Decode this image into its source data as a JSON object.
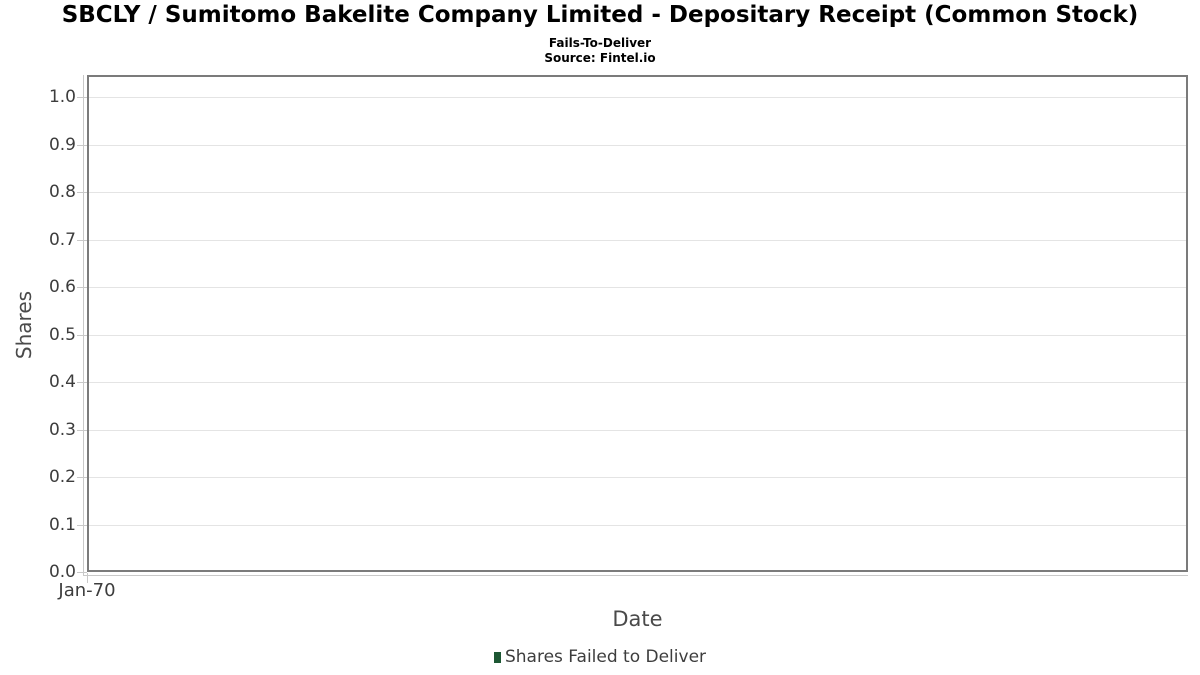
{
  "header": {
    "title": "SBCLY / Sumitomo Bakelite Company Limited - Depositary Receipt (Common Stock)"
  },
  "chart": {
    "subtitle": "Fails-To-Deliver",
    "source": "Source: Fintel.io"
  },
  "axes": {
    "y_label": "Shares",
    "x_label": "Date",
    "x_ticks": [
      "Jan-70"
    ]
  },
  "legend": {
    "items": [
      {
        "label": "Shares Failed to Deliver",
        "color": "#1d5733"
      }
    ]
  },
  "colors": {
    "background": "#ffffff",
    "panel_border": "#7b7b7b",
    "gridline": "#e4e4e4",
    "axis_spine": "#c9c9c9",
    "tick_label": "#3d3d3d",
    "axis_title": "#4a4a4a",
    "title_text": "#000000",
    "series_marker": "#1d5733"
  },
  "chart_data": {
    "type": "bar",
    "title": "SBCLY / Sumitomo Bakelite Company Limited - Depositary Receipt (Common Stock)",
    "subtitle": "Fails-To-Deliver",
    "source": "Source: Fintel.io",
    "xlabel": "Date",
    "ylabel": "Shares",
    "ylim": [
      0.0,
      1.0
    ],
    "y_ticks": [
      0.0,
      0.1,
      0.2,
      0.3,
      0.4,
      0.5,
      0.6,
      0.7,
      0.8,
      0.9,
      1.0
    ],
    "x_tick_labels": [
      "Jan-70"
    ],
    "grid": "horizontal",
    "legend_position": "bottom",
    "series": [
      {
        "name": "Shares Failed to Deliver",
        "color": "#1d5733",
        "x": [],
        "values": []
      }
    ]
  }
}
